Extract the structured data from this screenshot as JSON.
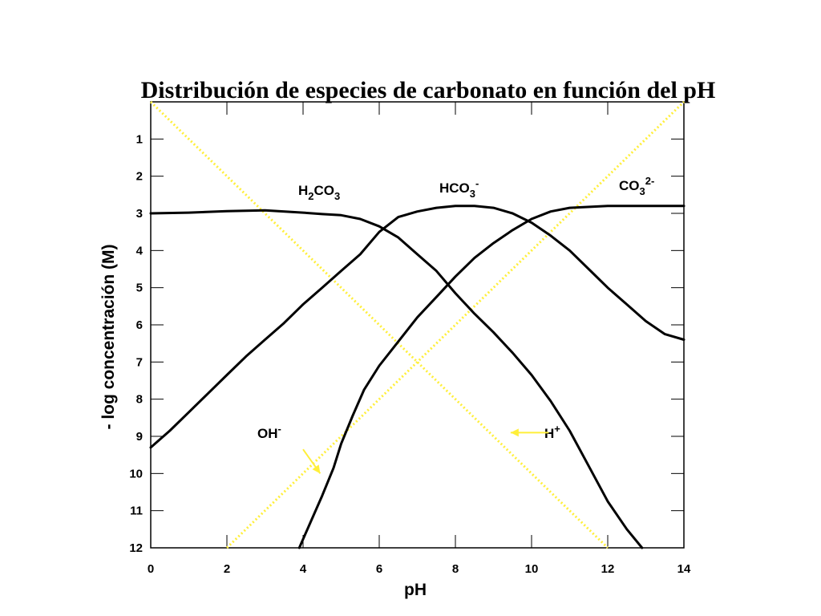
{
  "chart_data": {
    "type": "line",
    "title": "Distribución de especies de carbonato en función del pH",
    "xlabel": "pH",
    "ylabel": "- log concentración (M)",
    "xlim": [
      0,
      14
    ],
    "ylim": [
      0,
      12
    ],
    "y_inverted": true,
    "x_ticks": [
      "0",
      "2",
      "4",
      "6",
      "8",
      "10",
      "12",
      "14"
    ],
    "y_ticks": [
      "1",
      "2",
      "3",
      "4",
      "5",
      "6",
      "7",
      "8",
      "9",
      "10",
      "11",
      "12"
    ],
    "colors": {
      "curves": "#000000",
      "water_lines": "#ffef3a",
      "arrows": "#ffef3a"
    },
    "series": [
      {
        "name": "H2CO3",
        "label": {
          "base": "H",
          "sub1": "2",
          "mid": "CO",
          "sub2": "3",
          "sup": ""
        },
        "style": "solid-black",
        "x": [
          0,
          1,
          2,
          3,
          4,
          4.5,
          5,
          5.5,
          6,
          6.5,
          7,
          7.5,
          8,
          8.5,
          9,
          9.5,
          10,
          10.5,
          11,
          11.5,
          12,
          12.5,
          12.9
        ],
        "y": [
          3.0,
          2.98,
          2.94,
          2.92,
          2.98,
          3.02,
          3.05,
          3.15,
          3.35,
          3.65,
          4.1,
          4.55,
          5.15,
          5.7,
          6.2,
          6.75,
          7.35,
          8.05,
          8.85,
          9.8,
          10.75,
          11.5,
          12.0
        ]
      },
      {
        "name": "HCO3-",
        "label": {
          "base": "HCO",
          "sub1": "3",
          "mid": "",
          "sub2": "",
          "sup": "-"
        },
        "style": "solid-black",
        "x": [
          0,
          0.5,
          1,
          1.5,
          2,
          2.5,
          3,
          3.5,
          4,
          4.5,
          5,
          5.5,
          6,
          6.5,
          7,
          7.5,
          8,
          8.5,
          9,
          9.5,
          10,
          10.5,
          11,
          11.5,
          12,
          12.5,
          13,
          13.5,
          14
        ],
        "y": [
          9.3,
          8.85,
          8.35,
          7.85,
          7.35,
          6.85,
          6.4,
          5.95,
          5.45,
          5.0,
          4.55,
          4.1,
          3.5,
          3.1,
          2.95,
          2.85,
          2.8,
          2.8,
          2.85,
          3.0,
          3.25,
          3.6,
          4.0,
          4.5,
          5.0,
          5.45,
          5.9,
          6.25,
          6.4
        ]
      },
      {
        "name": "CO3 2-",
        "label": {
          "base": "CO",
          "sub1": "3",
          "mid": "",
          "sub2": "",
          "sup": "2-"
        },
        "style": "solid-black",
        "x": [
          3.9,
          4.2,
          4.5,
          4.8,
          5.0,
          5.3,
          5.6,
          6.0,
          6.5,
          7.0,
          7.5,
          8.0,
          8.5,
          9.0,
          9.5,
          10.0,
          10.5,
          11.0,
          12.0,
          13.0,
          14.0
        ],
        "y": [
          12.0,
          11.3,
          10.6,
          9.85,
          9.2,
          8.45,
          7.75,
          7.1,
          6.45,
          5.8,
          5.25,
          4.7,
          4.2,
          3.8,
          3.45,
          3.15,
          2.95,
          2.85,
          2.8,
          2.8,
          2.8
        ]
      },
      {
        "name": "H+",
        "label": {
          "base": "H",
          "sub1": "",
          "mid": "",
          "sub2": "",
          "sup": "+"
        },
        "style": "dotted-yellow",
        "x": [
          0,
          12
        ],
        "y": [
          0,
          12
        ]
      },
      {
        "name": "OH-",
        "label": {
          "base": "OH",
          "sub1": "",
          "mid": "",
          "sub2": "",
          "sup": "-"
        },
        "style": "dotted-yellow",
        "x": [
          2,
          14
        ],
        "y": [
          12,
          0
        ]
      }
    ],
    "annotations": [
      {
        "text": "OH-",
        "arrow_from": [
          4.0,
          9.35
        ],
        "arrow_to": [
          4.45,
          10.0
        ]
      },
      {
        "text": "H+",
        "arrow_from": [
          10.45,
          8.9
        ],
        "arrow_to": [
          9.45,
          8.9
        ]
      }
    ]
  }
}
